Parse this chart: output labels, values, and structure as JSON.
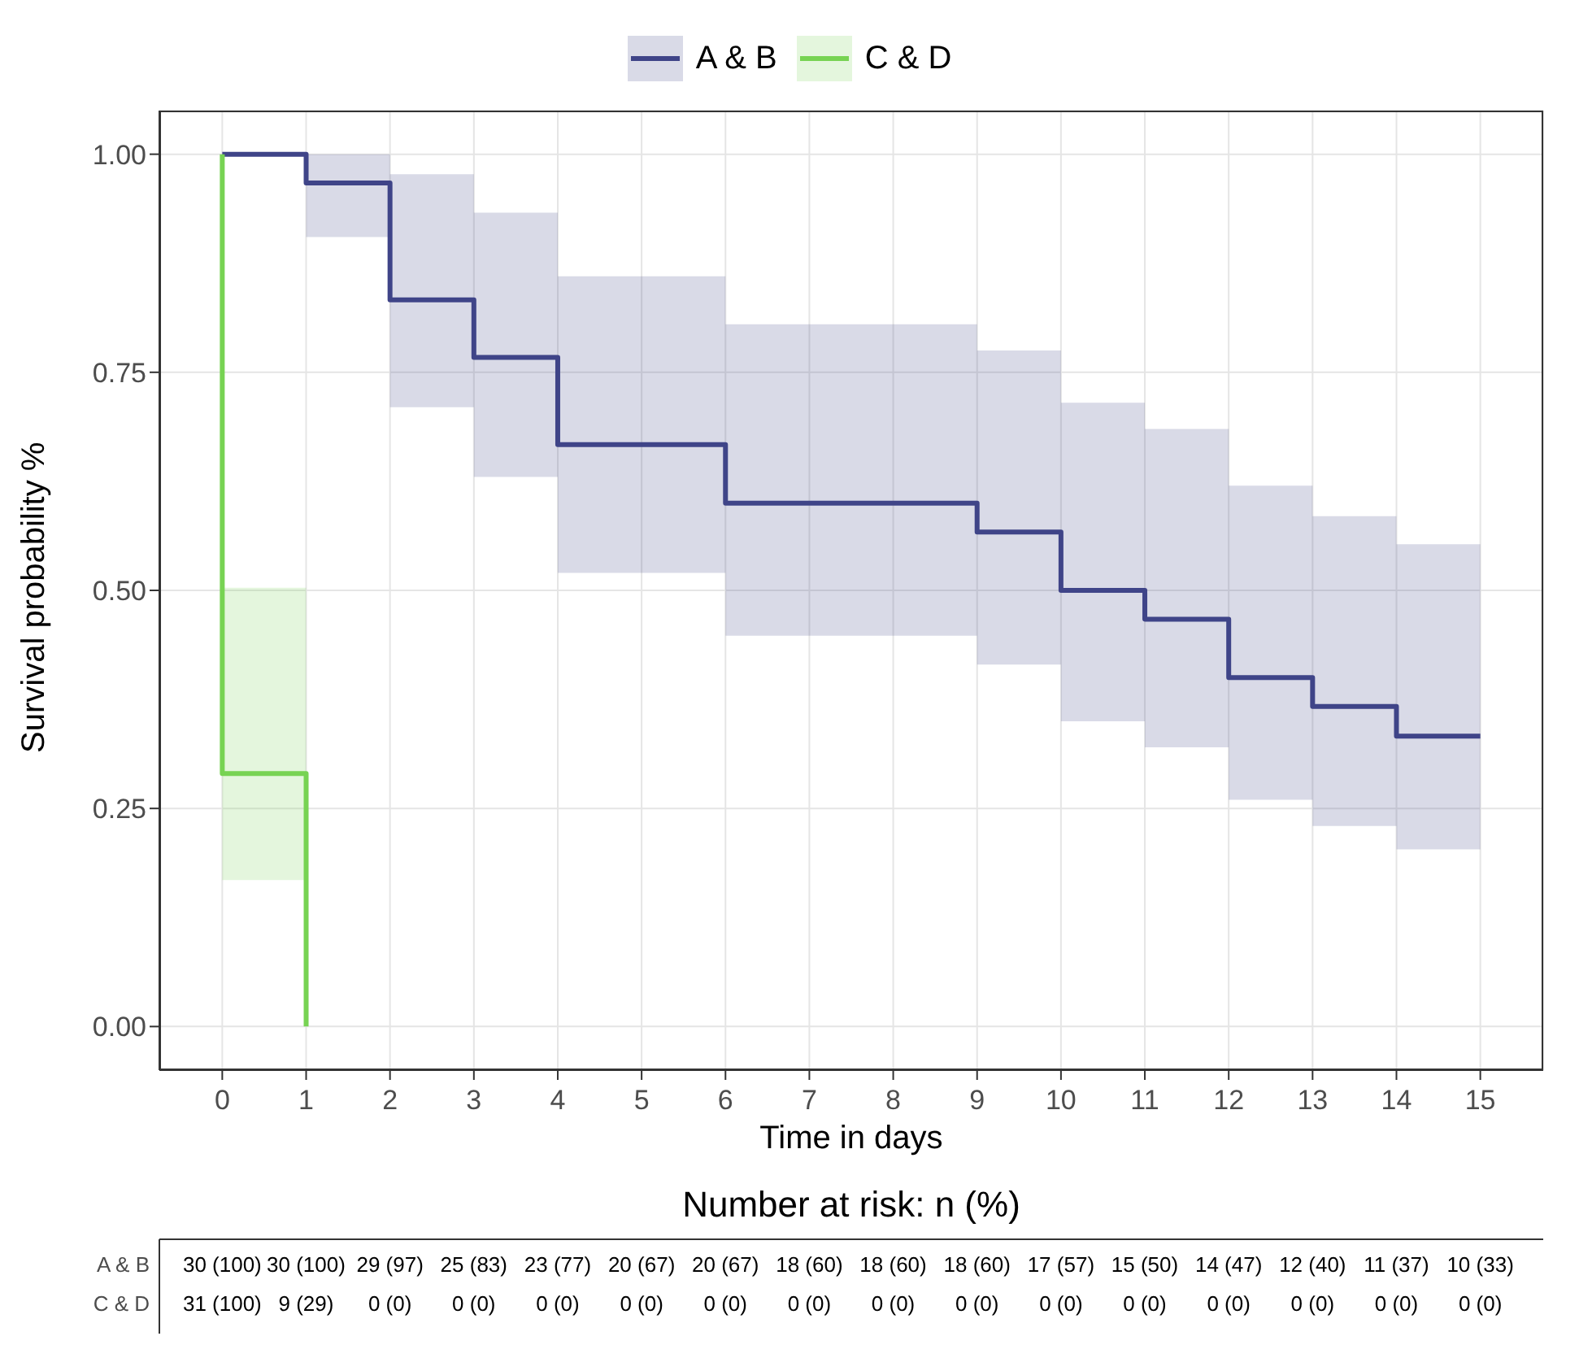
{
  "chart_data": [
    {
      "type": "step",
      "xlabel": "Time in days",
      "ylabel": "Survival probability %",
      "legend": "top",
      "grid": true,
      "xlim": [
        -0.75,
        15.75
      ],
      "ylim": [
        -0.05,
        1.05
      ],
      "xticks": [
        0,
        1,
        2,
        3,
        4,
        5,
        6,
        7,
        8,
        9,
        10,
        11,
        12,
        13,
        14,
        15
      ],
      "yticks": [
        {
          "value": 0,
          "label": "0.00"
        },
        {
          "value": 0.25,
          "label": "0.25"
        },
        {
          "value": 0.5,
          "label": "0.50"
        },
        {
          "value": 0.75,
          "label": "0.75"
        },
        {
          "value": 1,
          "label": "1.00"
        }
      ],
      "series": [
        {
          "name": "A & B",
          "color": "#3f4488",
          "x": [
            0,
            1,
            2,
            3,
            4,
            6,
            9,
            10,
            11,
            12,
            13,
            14,
            15
          ],
          "values": [
            1,
            0.967,
            0.833,
            0.767,
            0.667,
            0.6,
            0.567,
            0.5,
            0.467,
            0.4,
            0.367,
            0.333,
            0.333
          ],
          "lower": [
            null,
            0.905,
            0.71,
            0.63,
            0.52,
            0.448,
            0.415,
            0.35,
            0.32,
            0.26,
            0.23,
            0.203,
            0.203
          ],
          "upper": [
            null,
            1,
            0.977,
            0.933,
            0.86,
            0.805,
            0.775,
            0.715,
            0.685,
            0.62,
            0.585,
            0.553,
            0.553
          ]
        },
        {
          "name": "C & D",
          "color": "#77d353",
          "x": [
            0,
            0,
            1,
            1
          ],
          "values": [
            1,
            0.29,
            0.29,
            0
          ],
          "lower": [
            null,
            0.168,
            0.168,
            null
          ],
          "upper": [
            null,
            0.503,
            0.503,
            null
          ]
        }
      ]
    },
    {
      "type": "other",
      "title": "Number at risk: n (%)",
      "y_categories": [
        "A & B",
        "C & D"
      ],
      "cell_labels": [
        [
          "30 (100)",
          "30 (100)",
          "29 (97)",
          "25 (83)",
          "23 (77)",
          "20 (67)",
          "20 (67)",
          "18 (60)",
          "18 (60)",
          "18 (60)",
          "17 (57)",
          "15 (50)",
          "14 (47)",
          "12 (40)",
          "11 (37)",
          "10 (33)"
        ],
        [
          "31 (100)",
          "9 (29)",
          "0 (0)",
          "0 (0)",
          "0 (0)",
          "0 (0)",
          "0 (0)",
          "0 (0)",
          "0 (0)",
          "0 (0)",
          "0 (0)",
          "0 (0)",
          "0 (0)",
          "0 (0)",
          "0 (0)",
          "0 (0)"
        ]
      ]
    }
  ]
}
